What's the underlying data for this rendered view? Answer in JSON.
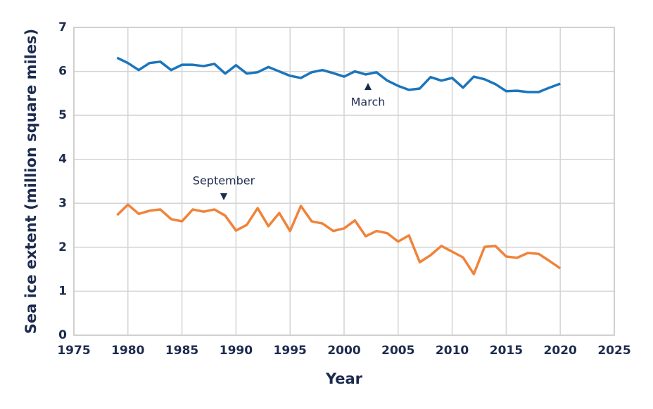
{
  "chart_data": {
    "type": "line",
    "x_label": "Year",
    "y_label": "Sea ice extent (million square miles)",
    "x": [
      1979,
      1980,
      1981,
      1982,
      1983,
      1984,
      1985,
      1986,
      1987,
      1988,
      1989,
      1990,
      1991,
      1992,
      1993,
      1994,
      1995,
      1996,
      1997,
      1998,
      1999,
      2000,
      2001,
      2002,
      2003,
      2004,
      2005,
      2006,
      2007,
      2008,
      2009,
      2010,
      2011,
      2012,
      2013,
      2014,
      2015,
      2016,
      2017,
      2018,
      2019,
      2020
    ],
    "series": [
      {
        "name": "March",
        "color": "#1b75bb",
        "values": [
          6.31,
          6.19,
          6.03,
          6.19,
          6.22,
          6.03,
          6.15,
          6.15,
          6.12,
          6.17,
          5.95,
          6.14,
          5.95,
          5.98,
          6.1,
          6.0,
          5.9,
          5.85,
          5.98,
          6.03,
          5.96,
          5.88,
          6.0,
          5.93,
          5.98,
          5.79,
          5.67,
          5.58,
          5.61,
          5.87,
          5.79,
          5.85,
          5.63,
          5.88,
          5.82,
          5.71,
          5.55,
          5.56,
          5.53,
          5.53,
          5.63,
          5.72
        ]
      },
      {
        "name": "September",
        "color": "#f0833a",
        "values": [
          2.73,
          2.97,
          2.76,
          2.83,
          2.86,
          2.64,
          2.59,
          2.86,
          2.81,
          2.86,
          2.72,
          2.38,
          2.51,
          2.89,
          2.48,
          2.78,
          2.37,
          2.94,
          2.59,
          2.54,
          2.37,
          2.43,
          2.61,
          2.25,
          2.37,
          2.32,
          2.13,
          2.27,
          1.66,
          1.82,
          2.03,
          1.9,
          1.77,
          1.39,
          2.01,
          2.03,
          1.79,
          1.76,
          1.87,
          1.85,
          1.69,
          1.52
        ]
      }
    ],
    "xlim": [
      1975,
      2025
    ],
    "xticks": [
      1975,
      1980,
      1985,
      1990,
      1995,
      2000,
      2005,
      2010,
      2015,
      2020,
      2025
    ],
    "ylim": [
      0,
      7
    ],
    "yticks": [
      0,
      1,
      2,
      3,
      4,
      5,
      6,
      7
    ],
    "grid": true
  }
}
